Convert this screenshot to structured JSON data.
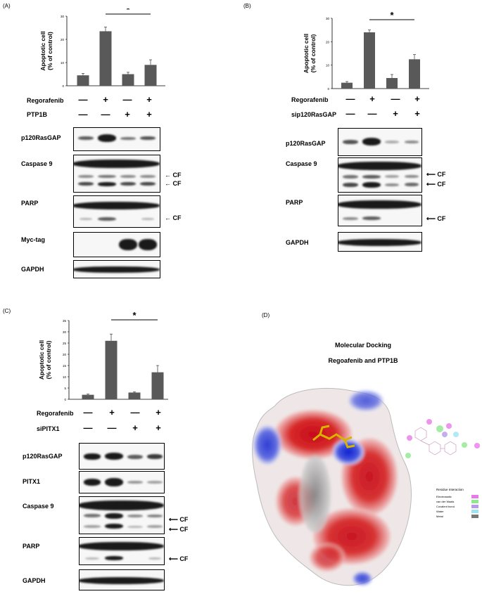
{
  "panelA": {
    "label": "(A)",
    "chart_data": {
      "type": "bar",
      "ylabel": "Apoptotic cell\n(% of control)",
      "ylim": [
        0,
        30
      ],
      "yticks": [
        0,
        10,
        20,
        30
      ],
      "values": [
        4.5,
        23.5,
        5,
        9
      ],
      "errors": [
        0.8,
        1.8,
        0.8,
        2.2
      ],
      "significance": "*"
    },
    "rows": [
      {
        "label": "Regorafenib",
        "signs": [
          "—",
          "+",
          "—",
          "+"
        ]
      },
      {
        "label": "PTP1B",
        "signs": [
          "—",
          "—",
          "+",
          "+"
        ]
      }
    ],
    "blots": [
      "p120RasGAP",
      "Caspase 9",
      "PARP",
      "Myc-tag",
      "GAPDH"
    ],
    "cf": "CF"
  },
  "panelB": {
    "label": "(B)",
    "chart_data": {
      "type": "bar",
      "ylabel": "Apoptotic cell\n(% of control)",
      "ylim": [
        0,
        30
      ],
      "yticks": [
        0,
        10,
        20,
        30
      ],
      "values": [
        2.5,
        24,
        4.5,
        12.5
      ],
      "errors": [
        0.5,
        1.0,
        1.5,
        2.0
      ],
      "significance": "*"
    },
    "rows": [
      {
        "label": "Regorafenib",
        "signs": [
          "—",
          "+",
          "—",
          "+"
        ]
      },
      {
        "label": "sip120RasGAP",
        "signs": [
          "—",
          "—",
          "+",
          "+"
        ]
      }
    ],
    "blots": [
      "p120RasGAP",
      "Caspase 9",
      "PARP",
      "GAPDH"
    ],
    "cf": "CF"
  },
  "panelC": {
    "label": "(C)",
    "chart_data": {
      "type": "bar",
      "ylabel": "Apoptotic cell\n(% of control)",
      "ylim": [
        0,
        35
      ],
      "yticks": [
        0,
        5,
        10,
        15,
        20,
        25,
        30,
        35
      ],
      "values": [
        2,
        26,
        3,
        12
      ],
      "errors": [
        0.3,
        3,
        0.3,
        3
      ],
      "significance": "*"
    },
    "rows": [
      {
        "label": "Regorafenib",
        "signs": [
          "—",
          "+",
          "—",
          "+"
        ]
      },
      {
        "label": "siPITX1",
        "signs": [
          "—",
          "—",
          "+",
          "+"
        ]
      }
    ],
    "blots": [
      "p120RasGAP",
      "PITX1",
      "Caspase 9",
      "PARP",
      "GAPDH"
    ],
    "cf": "CF"
  },
  "panelD": {
    "label": "(D)",
    "title": "Molecular Docking",
    "subtitle": "Regoafenib and PTP1B",
    "legend_title": "Residue Interaction",
    "legend": [
      {
        "label": "Electrostatic",
        "color": "#e879e8"
      },
      {
        "label": "van der Waals",
        "color": "#8fe88f"
      },
      {
        "label": "Covalent bond",
        "color": "#b59be8"
      },
      {
        "label": "Water",
        "color": "#9fe3ef"
      },
      {
        "label": "Metal",
        "color": "#777777"
      }
    ]
  }
}
